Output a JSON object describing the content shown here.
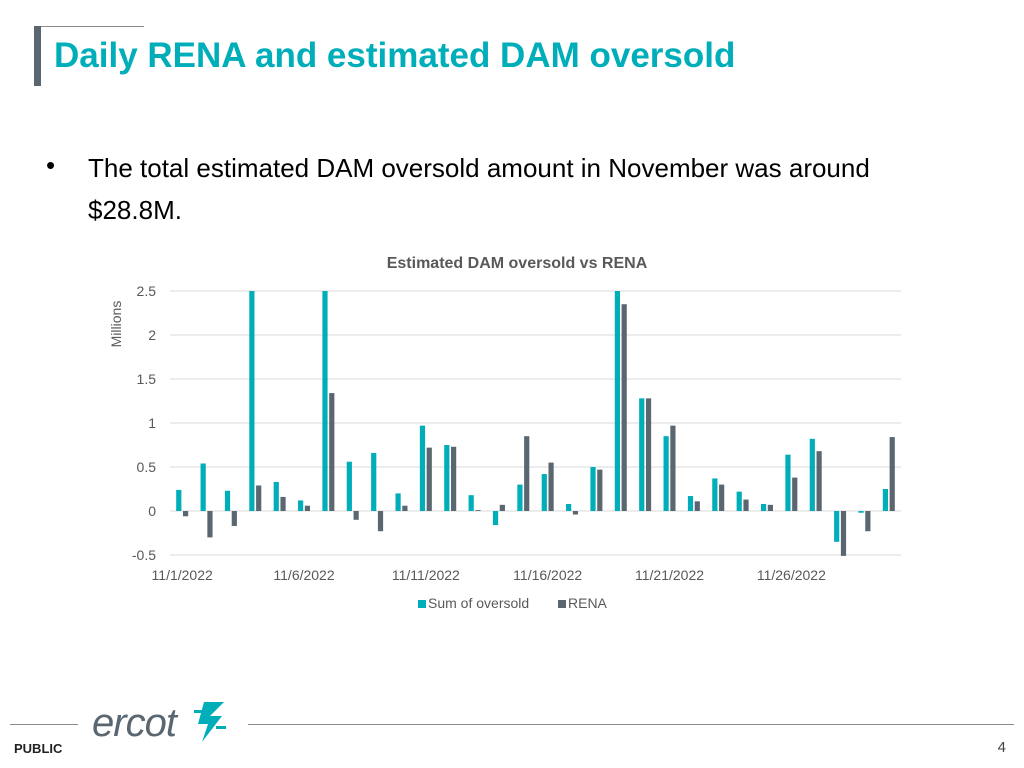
{
  "slide": {
    "title": "Daily RENA and estimated DAM oversold",
    "bullet_symbol": "•",
    "bullet_text": "The total estimated DAM oversold amount in November was around $28.8M.",
    "footer_label": "PUBLIC",
    "page_number": "4",
    "logo_text": "ercot",
    "logo_icon": "ercot-lightning-star-icon"
  },
  "colors": {
    "title": "#00aeba",
    "oversold": "#00aeba",
    "rena": "#5b6770",
    "gridline": "#d9d9d9"
  },
  "chart_data": {
    "type": "bar",
    "title": "Estimated DAM oversold vs RENA",
    "ylabel": "Millions",
    "xlabel": "",
    "ylim": [
      -0.5,
      2.5
    ],
    "yticks": [
      -0.5,
      0,
      0.5,
      1,
      1.5,
      2,
      2.5
    ],
    "ytick_labels": [
      "-0.5",
      "0",
      "0.5",
      "1",
      "1.5",
      "2",
      "2.5"
    ],
    "grid": true,
    "legend_position": "bottom",
    "categories": [
      "11/1/2022",
      "11/2/2022",
      "11/3/2022",
      "11/4/2022",
      "11/5/2022",
      "11/6/2022",
      "11/7/2022",
      "11/8/2022",
      "11/9/2022",
      "11/10/2022",
      "11/11/2022",
      "11/12/2022",
      "11/13/2022",
      "11/14/2022",
      "11/15/2022",
      "11/16/2022",
      "11/17/2022",
      "11/18/2022",
      "11/19/2022",
      "11/20/2022",
      "11/21/2022",
      "11/22/2022",
      "11/23/2022",
      "11/24/2022",
      "11/25/2022",
      "11/26/2022",
      "11/27/2022",
      "11/28/2022",
      "11/29/2022",
      "11/30/2022"
    ],
    "xtick_labels": [
      {
        "index": 0,
        "label": "11/1/2022"
      },
      {
        "index": 5,
        "label": "11/6/2022"
      },
      {
        "index": 10,
        "label": "11/11/2022"
      },
      {
        "index": 15,
        "label": "11/16/2022"
      },
      {
        "index": 20,
        "label": "11/21/2022"
      },
      {
        "index": 25,
        "label": "11/26/2022"
      }
    ],
    "series": [
      {
        "name": "Sum of oversold",
        "values": [
          0.24,
          0.54,
          0.23,
          2.5,
          0.33,
          0.12,
          2.5,
          0.56,
          0.66,
          0.2,
          0.97,
          0.75,
          0.18,
          -0.16,
          0.3,
          0.42,
          0.08,
          0.5,
          2.5,
          1.28,
          0.85,
          0.17,
          0.37,
          0.22,
          0.08,
          0.64,
          0.82,
          -0.35,
          -0.02,
          0.25
        ]
      },
      {
        "name": "RENA",
        "values": [
          -0.06,
          -0.3,
          -0.17,
          0.29,
          0.16,
          0.06,
          1.34,
          -0.1,
          -0.23,
          0.06,
          0.72,
          0.73,
          0.01,
          0.07,
          0.85,
          0.55,
          -0.04,
          0.47,
          2.35,
          1.28,
          0.97,
          0.11,
          0.3,
          0.13,
          0.07,
          0.38,
          0.68,
          -0.51,
          -0.23,
          0.84
        ]
      }
    ]
  }
}
